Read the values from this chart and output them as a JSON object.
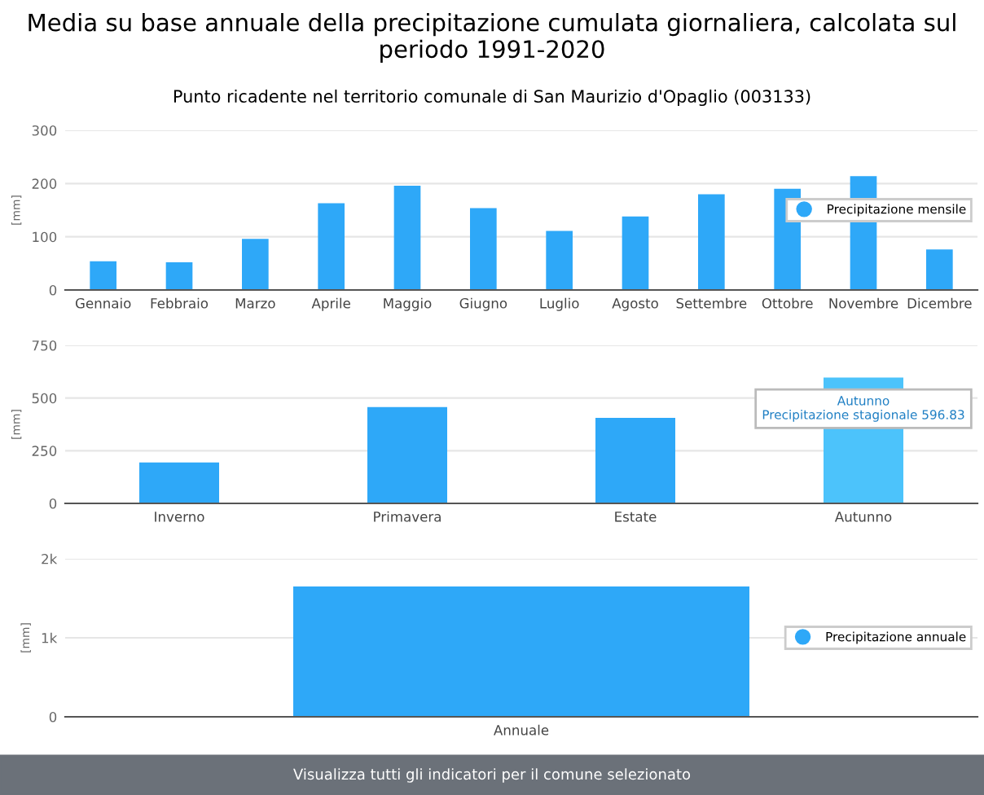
{
  "chart_data": [
    {
      "type": "bar",
      "title": "Media su base annuale della precipitazione cumulata giornaliera, calcolata sul periodo 1991-2020",
      "subtitle": "Punto ricadente nel territorio comunale di San Maurizio d'Opaglio (003133)",
      "ylabel": "[mm]",
      "categories": [
        "Gennaio",
        "Febbraio",
        "Marzo",
        "Aprile",
        "Maggio",
        "Giugno",
        "Luglio",
        "Agosto",
        "Settembre",
        "Ottobre",
        "Novembre",
        "Dicembre"
      ],
      "series": [
        {
          "name": "Precipitazione mensile",
          "color": "#2ea8f8",
          "values": [
            54,
            52,
            96,
            163,
            196,
            154,
            111,
            138,
            180,
            190,
            214,
            76
          ]
        }
      ],
      "ylim": [
        0,
        300
      ],
      "yticks": [
        0,
        100,
        200,
        300
      ],
      "grid": "y",
      "legend": "right"
    },
    {
      "type": "bar",
      "ylabel": "[mm]",
      "categories": [
        "Inverno",
        "Primavera",
        "Estate",
        "Autunno"
      ],
      "series": [
        {
          "color": "#2ea8f8",
          "colors": [
            "#2ea8f8",
            "#2ea8f8",
            "#2ea8f8",
            "#4cc3fb"
          ],
          "values": [
            194,
            457,
            406,
            596.83
          ]
        }
      ],
      "ylim": [
        0,
        750
      ],
      "yticks": [
        0,
        250,
        500,
        750
      ],
      "grid": "y",
      "annotations": [
        {
          "text": "Autunno\nPrecipitazione stagionale 596.83",
          "x": "Autunno",
          "y": 596.83
        }
      ]
    },
    {
      "type": "bar",
      "ylabel": "[mm]",
      "categories": [
        "Annuale"
      ],
      "series": [
        {
          "name": "Precipitazione annuale",
          "color": "#2ea8f8",
          "values": [
            1650
          ]
        }
      ],
      "ylim": [
        0,
        2000
      ],
      "yticks": [
        0,
        {
          "value": 1000,
          "label": "1k"
        },
        {
          "value": 2000,
          "label": "2k"
        }
      ],
      "grid": "y",
      "legend": "right",
      "annotations": [
        "Visualizza tutti gli indicatori per il comune selezionato"
      ]
    }
  ]
}
